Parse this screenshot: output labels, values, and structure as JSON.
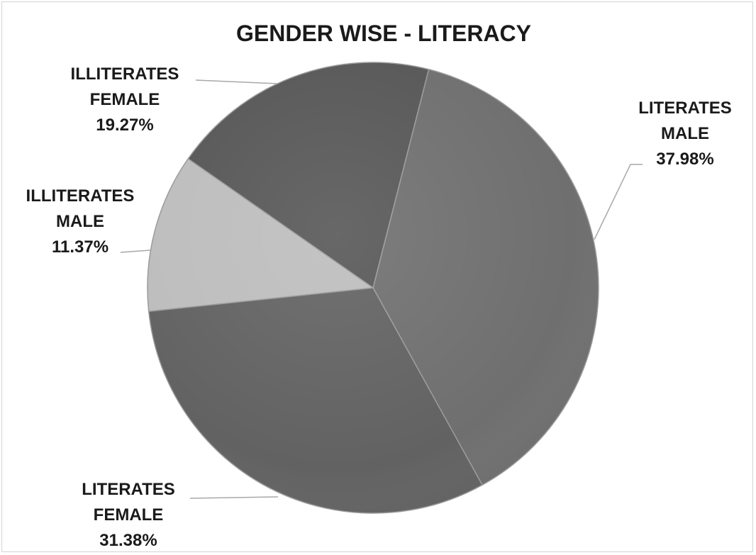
{
  "chart_data": {
    "type": "pie",
    "title": "GENDER WISE - LITERACY",
    "slices": [
      {
        "category": "LITERATES",
        "group": "MALE",
        "value": 37.98,
        "label": "37.98%",
        "color": "#6f6f6f"
      },
      {
        "category": "LITERATES",
        "group": "FEMALE",
        "value": 31.38,
        "label": "31.38%",
        "color": "#626262"
      },
      {
        "category": "ILLITERATES",
        "group": "MALE",
        "value": 11.37,
        "label": "11.37%",
        "color": "#bdbdbd"
      },
      {
        "category": "ILLITERATES",
        "group": "FEMALE",
        "value": 19.27,
        "label": "19.27%",
        "color": "#575757"
      }
    ],
    "legend": "none"
  }
}
